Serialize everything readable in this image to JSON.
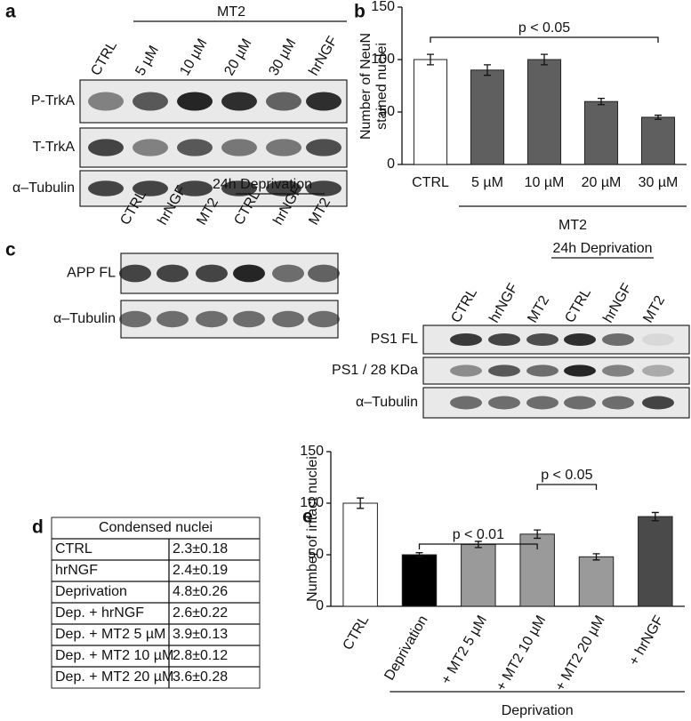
{
  "figure": {
    "panel_labels": [
      "a",
      "b",
      "c",
      "d",
      "e"
    ],
    "a": {
      "group_label": "MT2",
      "lanes": [
        "CTRL",
        "5 µM",
        "10 µM",
        "20 µM",
        "30 µM",
        "hrNGF"
      ],
      "rows": [
        "P-TrkA",
        "T-TrkA",
        "α–Tubulin"
      ]
    },
    "c": {
      "left": {
        "group_label": "24h Deprivation",
        "lanes": [
          "CTRL",
          "hrNGF",
          "MT2",
          "CTRL",
          "hrNGF",
          "MT2"
        ],
        "rows": [
          "APP FL",
          "α–Tubulin"
        ]
      },
      "right": {
        "group_label": "24h Deprivation",
        "lanes": [
          "CTRL",
          "hrNGF",
          "MT2",
          "CTRL",
          "hrNGF",
          "MT2"
        ],
        "rows": [
          "PS1 FL",
          "PS1 / 28 KDa",
          "α–Tubulin"
        ]
      }
    },
    "d": {
      "title": "Condensed nuclei",
      "rows": [
        [
          "CTRL",
          "2.3±0.18"
        ],
        [
          "hrNGF",
          "2.4±0.19"
        ],
        [
          "Deprivation",
          "4.8±0.26"
        ],
        [
          "Dep. + hrNGF",
          "2.6±0.22"
        ],
        [
          "Dep. + MT2 5 µM",
          "3.9±0.13"
        ],
        [
          "Dep. + MT2 10 µM",
          "2.8±0.12"
        ],
        [
          "Dep. + MT2 20 µM",
          "3.6±0.28"
        ]
      ]
    }
  },
  "chart_data": [
    {
      "type": "bar",
      "y_label": [
        "Number of NeuN",
        "stained nuclei"
      ],
      "categories": [
        "CTRL",
        "5 µM",
        "10 µM",
        "20 µM",
        "30 µM"
      ],
      "values": [
        100,
        90,
        100,
        60,
        45
      ],
      "errors": [
        5,
        5,
        5,
        3,
        2
      ],
      "colors": [
        "#ffffff",
        "#5f5f5f",
        "#5f5f5f",
        "#5f5f5f",
        "#5f5f5f"
      ],
      "ylim": [
        0,
        150
      ],
      "yticks": [
        0,
        50,
        100,
        150
      ],
      "annotations": [
        "p < 0.05"
      ],
      "group_label": "MT2"
    },
    {
      "type": "bar",
      "y_label": [
        "Number of intact nuclei"
      ],
      "categories": [
        "CTRL",
        "Deprivation",
        "+ MT2 5 µM",
        "+ MT2 10 µM",
        "+ MT2 20 µM",
        "+ hrNGF"
      ],
      "values": [
        100,
        50,
        60,
        70,
        48,
        87
      ],
      "errors": [
        5,
        2,
        3,
        4,
        3,
        4
      ],
      "colors": [
        "#ffffff",
        "#000000",
        "#9a9a9a",
        "#9a9a9a",
        "#9a9a9a",
        "#4a4a4a"
      ],
      "ylim": [
        0,
        150
      ],
      "yticks": [
        0,
        50,
        100,
        150
      ],
      "annotations": [
        "p < 0.05",
        "p < 0.01"
      ],
      "group_label": "Deprivation"
    }
  ]
}
